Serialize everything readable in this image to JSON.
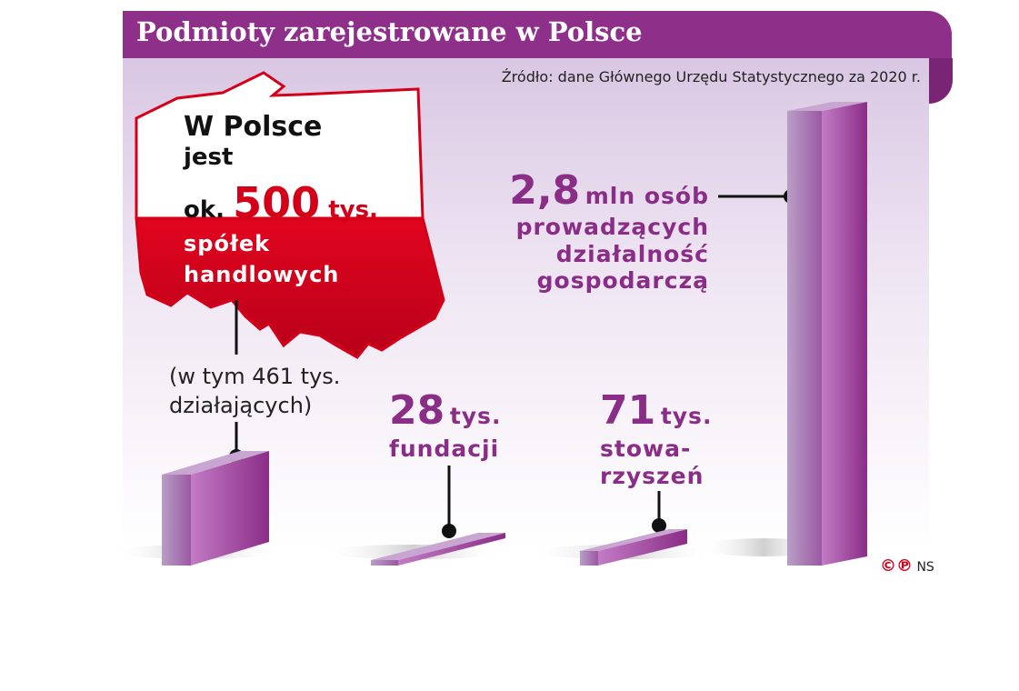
{
  "title": "Podmioty zarejestrowane w Polsce",
  "source": "Źródło: dane Głównego Urzędu Statystycznego za 2020 r.",
  "poland": {
    "line1": "W Polsce",
    "line2": "jest",
    "line3_pre": "ok.",
    "number": "500",
    "unit": "tys.",
    "line4": "spółek",
    "line5": "handlowych"
  },
  "note": {
    "line1": "(w tym 461 tys.",
    "line2": "działających)"
  },
  "labels": {
    "fund_number": "28",
    "fund_unit": "tys.",
    "fund_text": "fundacji",
    "stow_number": "71",
    "stow_unit": "tys.",
    "stow_text1": "stowa-",
    "stow_text2": "rzyszeń",
    "osob_number": "2,8",
    "osob_unit": "mln osób",
    "osob_text1": "prowadzących",
    "osob_text2": "działalność",
    "osob_text3": "gospodarczą"
  },
  "copyright": {
    "symbols": "©℗",
    "author": "NS"
  },
  "colors": {
    "purple": "#8e2f8a",
    "red": "#d4001a"
  },
  "chart_data": {
    "type": "bar",
    "title": "Podmioty zarejestrowane w Polsce",
    "categories": [
      "spółki handlowe",
      "fundacje",
      "stowarzyszenia",
      "osoby prowadzące działalność gospodarczą"
    ],
    "unit": "tys.",
    "values": [
      500,
      28,
      71,
      2800
    ]
  }
}
